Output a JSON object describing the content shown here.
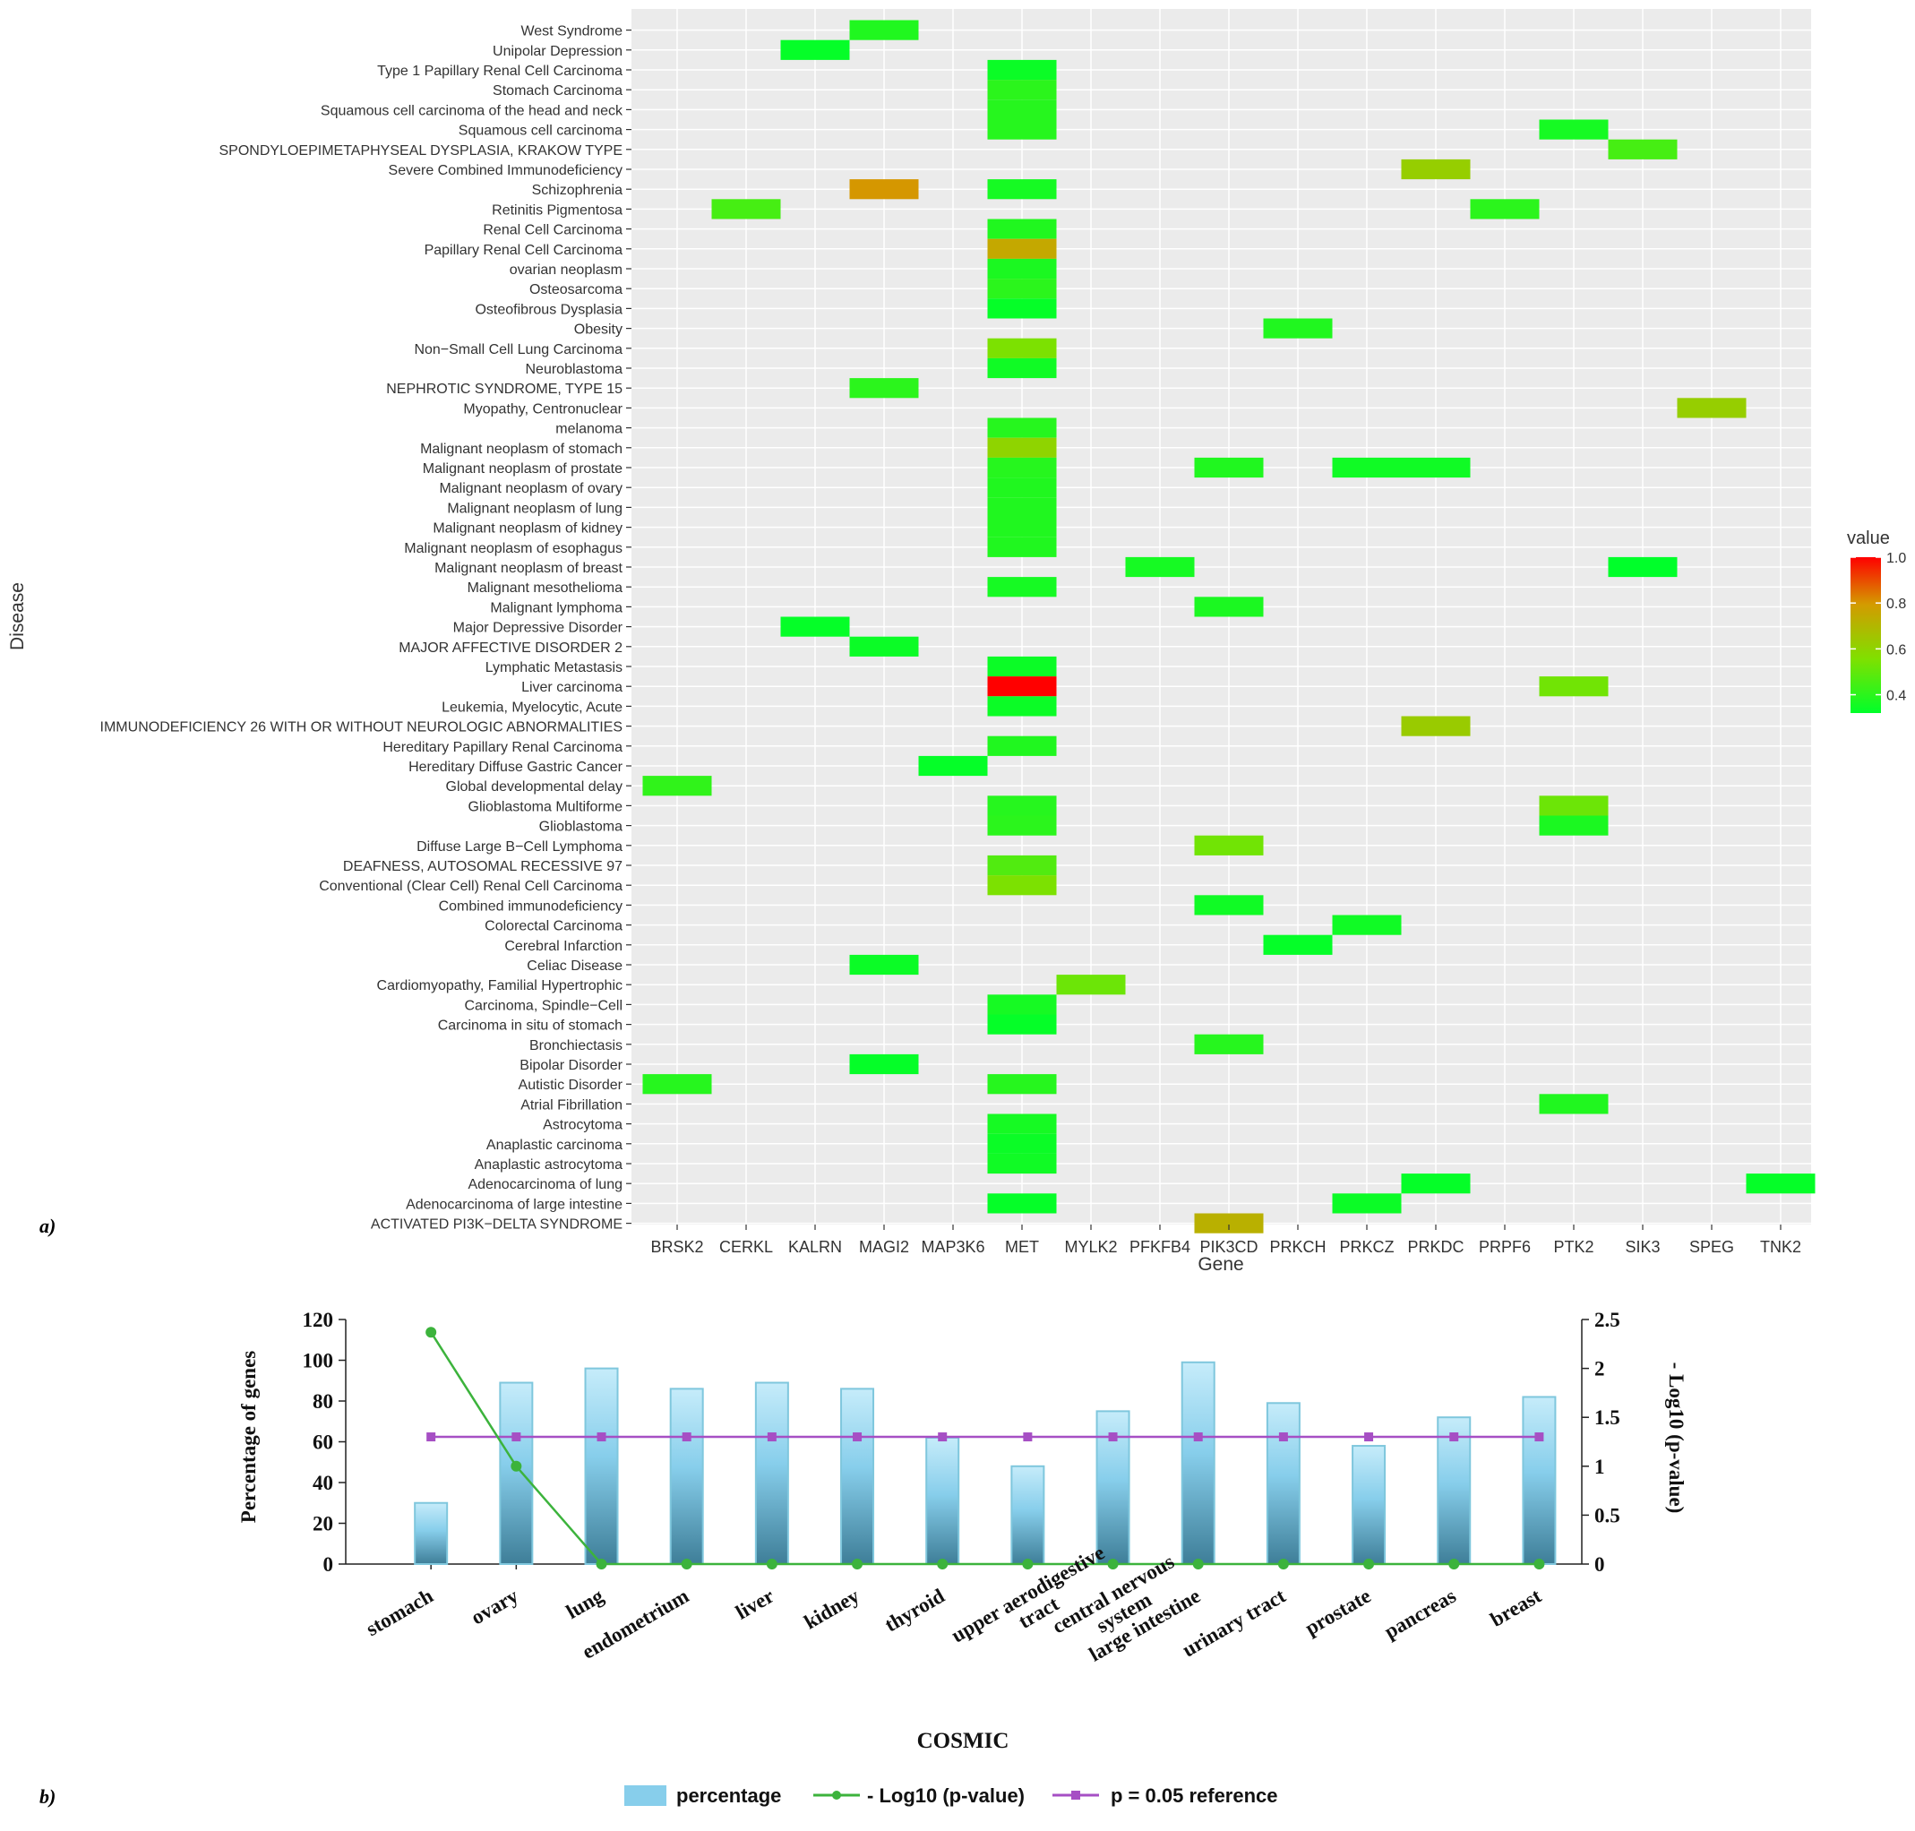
{
  "chart_data": [
    {
      "type": "heatmap",
      "panel_label": "a)",
      "xlabel": "Gene",
      "ylabel": "Disease",
      "x": [
        "BRSK2",
        "CERKL",
        "KALRN",
        "MAGI2",
        "MAP3K6",
        "MET",
        "MYLK2",
        "PFKFB4",
        "PIK3CD",
        "PRKCH",
        "PRKCZ",
        "PRKDC",
        "PRPF6",
        "PTK2",
        "SIK3",
        "SPEG",
        "TNK2"
      ],
      "y": [
        "West Syndrome",
        "Unipolar Depression",
        "Type 1 Papillary Renal Cell Carcinoma",
        "Stomach Carcinoma",
        "Squamous cell carcinoma of the head and neck",
        "Squamous cell carcinoma",
        "SPONDYLOEPIMETAPHYSEAL DYSPLASIA, KRAKOW TYPE",
        "Severe Combined Immunodeficiency",
        "Schizophrenia",
        "Retinitis Pigmentosa",
        "Renal Cell Carcinoma",
        "Papillary Renal Cell Carcinoma",
        "ovarian neoplasm",
        "Osteosarcoma",
        "Osteofibrous Dysplasia",
        "Obesity",
        "Non−Small Cell Lung Carcinoma",
        "Neuroblastoma",
        "NEPHROTIC SYNDROME, TYPE 15",
        "Myopathy, Centronuclear",
        "melanoma",
        "Malignant neoplasm of stomach",
        "Malignant neoplasm of prostate",
        "Malignant neoplasm of ovary",
        "Malignant neoplasm of lung",
        "Malignant neoplasm of kidney",
        "Malignant neoplasm of esophagus",
        "Malignant neoplasm of breast",
        "Malignant mesothelioma",
        "Malignant lymphoma",
        "Major Depressive Disorder",
        "MAJOR AFFECTIVE DISORDER 2",
        "Lymphatic Metastasis",
        "Liver carcinoma",
        "Leukemia, Myelocytic, Acute",
        "IMMUNODEFICIENCY 26 WITH OR WITHOUT NEUROLOGIC ABNORMALITIES",
        "Hereditary Papillary Renal Carcinoma",
        "Hereditary Diffuse Gastric Cancer",
        "Global developmental delay",
        "Glioblastoma Multiforme",
        "Glioblastoma",
        "Diffuse Large B−Cell Lymphoma",
        "DEAFNESS, AUTOSOMAL RECESSIVE 97",
        "Conventional (Clear Cell) Renal Cell Carcinoma",
        "Combined immunodeficiency",
        "Colorectal Carcinoma",
        "Cerebral Infarction",
        "Celiac Disease",
        "Cardiomyopathy, Familial Hypertrophic",
        "Carcinoma, Spindle−Cell",
        "Carcinoma in situ of stomach",
        "Bronchiectasis",
        "Bipolar Disorder",
        "Autistic Disorder",
        "Atrial Fibrillation",
        "Astrocytoma",
        "Anaplastic carcinoma",
        "Anaplastic astrocytoma",
        "Adenocarcinoma of lung",
        "Adenocarcinoma of large intestine",
        "ACTIVATED PI3K−DELTA SYNDROME"
      ],
      "cells": [
        {
          "gene": "MAGI2",
          "disease": "West Syndrome",
          "value": 0.38
        },
        {
          "gene": "KALRN",
          "disease": "Unipolar Depression",
          "value": 0.33
        },
        {
          "gene": "MET",
          "disease": "Type 1 Papillary Renal Cell Carcinoma",
          "value": 0.34
        },
        {
          "gene": "MET",
          "disease": "Stomach Carcinoma",
          "value": 0.4
        },
        {
          "gene": "MET",
          "disease": "Squamous cell carcinoma of the head and neck",
          "value": 0.39
        },
        {
          "gene": "MET",
          "disease": "Squamous cell carcinoma",
          "value": 0.39
        },
        {
          "gene": "PTK2",
          "disease": "Squamous cell carcinoma",
          "value": 0.36
        },
        {
          "gene": "SIK3",
          "disease": "SPONDYLOEPIMETAPHYSEAL DYSPLASIA, KRAKOW TYPE",
          "value": 0.45
        },
        {
          "gene": "PRKDC",
          "disease": "Severe Combined Immunodeficiency",
          "value": 0.62
        },
        {
          "gene": "MAGI2",
          "disease": "Schizophrenia",
          "value": 0.8
        },
        {
          "gene": "MET",
          "disease": "Schizophrenia",
          "value": 0.36
        },
        {
          "gene": "CERKL",
          "disease": "Retinitis Pigmentosa",
          "value": 0.45
        },
        {
          "gene": "PRPF6",
          "disease": "Retinitis Pigmentosa",
          "value": 0.4
        },
        {
          "gene": "MET",
          "disease": "Renal Cell Carcinoma",
          "value": 0.38
        },
        {
          "gene": "MET",
          "disease": "Papillary Renal Cell Carcinoma",
          "value": 0.75
        },
        {
          "gene": "MET",
          "disease": "ovarian neoplasm",
          "value": 0.37
        },
        {
          "gene": "MET",
          "disease": "Osteosarcoma",
          "value": 0.4
        },
        {
          "gene": "MET",
          "disease": "Osteofibrous Dysplasia",
          "value": 0.33
        },
        {
          "gene": "PRKCH",
          "disease": "Obesity",
          "value": 0.38
        },
        {
          "gene": "MET",
          "disease": "Non−Small Cell Lung Carcinoma",
          "value": 0.55
        },
        {
          "gene": "MET",
          "disease": "Neuroblastoma",
          "value": 0.35
        },
        {
          "gene": "MAGI2",
          "disease": "NEPHROTIC SYNDROME, TYPE 15",
          "value": 0.4
        },
        {
          "gene": "SPEG",
          "disease": "Myopathy, Centronuclear",
          "value": 0.62
        },
        {
          "gene": "MET",
          "disease": "melanoma",
          "value": 0.39
        },
        {
          "gene": "MET",
          "disease": "Malignant neoplasm of stomach",
          "value": 0.6
        },
        {
          "gene": "MET",
          "disease": "Malignant neoplasm of prostate",
          "value": 0.39
        },
        {
          "gene": "PIK3CD",
          "disease": "Malignant neoplasm of prostate",
          "value": 0.38
        },
        {
          "gene": "PRKCZ",
          "disease": "Malignant neoplasm of prostate",
          "value": 0.35
        },
        {
          "gene": "PRKDC",
          "disease": "Malignant neoplasm of prostate",
          "value": 0.35
        },
        {
          "gene": "MET",
          "disease": "Malignant neoplasm of ovary",
          "value": 0.38
        },
        {
          "gene": "MET",
          "disease": "Malignant neoplasm of lung",
          "value": 0.38
        },
        {
          "gene": "MET",
          "disease": "Malignant neoplasm of kidney",
          "value": 0.38
        },
        {
          "gene": "MET",
          "disease": "Malignant neoplasm of esophagus",
          "value": 0.38
        },
        {
          "gene": "PFKFB4",
          "disease": "Malignant neoplasm of breast",
          "value": 0.36
        },
        {
          "gene": "SIK3",
          "disease": "Malignant neoplasm of breast",
          "value": 0.32
        },
        {
          "gene": "MET",
          "disease": "Malignant mesothelioma",
          "value": 0.36
        },
        {
          "gene": "PIK3CD",
          "disease": "Malignant lymphoma",
          "value": 0.37
        },
        {
          "gene": "KALRN",
          "disease": "Major Depressive Disorder",
          "value": 0.33
        },
        {
          "gene": "MAGI2",
          "disease": "MAJOR AFFECTIVE DISORDER 2",
          "value": 0.34
        },
        {
          "gene": "MET",
          "disease": "Lymphatic Metastasis",
          "value": 0.34
        },
        {
          "gene": "MET",
          "disease": "Liver carcinoma",
          "value": 1.0
        },
        {
          "gene": "PTK2",
          "disease": "Liver carcinoma",
          "value": 0.53
        },
        {
          "gene": "MET",
          "disease": "Leukemia, Myelocytic, Acute",
          "value": 0.34
        },
        {
          "gene": "PRKDC",
          "disease": "IMMUNODEFICIENCY 26 WITH OR WITHOUT NEUROLOGIC ABNORMALITIES",
          "value": 0.63
        },
        {
          "gene": "MET",
          "disease": "Hereditary Papillary Renal Carcinoma",
          "value": 0.38
        },
        {
          "gene": "MAP3K6",
          "disease": "Hereditary Diffuse Gastric Cancer",
          "value": 0.33
        },
        {
          "gene": "BRSK2",
          "disease": "Global developmental delay",
          "value": 0.41
        },
        {
          "gene": "MET",
          "disease": "Glioblastoma Multiforme",
          "value": 0.39
        },
        {
          "gene": "PTK2",
          "disease": "Glioblastoma Multiforme",
          "value": 0.52
        },
        {
          "gene": "MET",
          "disease": "Glioblastoma",
          "value": 0.4
        },
        {
          "gene": "PTK2",
          "disease": "Glioblastoma",
          "value": 0.37
        },
        {
          "gene": "PIK3CD",
          "disease": "Diffuse Large B−Cell Lymphoma",
          "value": 0.53
        },
        {
          "gene": "MET",
          "disease": "DEAFNESS, AUTOSOMAL RECESSIVE 97",
          "value": 0.47
        },
        {
          "gene": "MET",
          "disease": "Conventional (Clear Cell) Renal Cell Carcinoma",
          "value": 0.55
        },
        {
          "gene": "PIK3CD",
          "disease": "Combined immunodeficiency",
          "value": 0.35
        },
        {
          "gene": "PRKCZ",
          "disease": "Colorectal Carcinoma",
          "value": 0.35
        },
        {
          "gene": "PRKCH",
          "disease": "Cerebral Infarction",
          "value": 0.33
        },
        {
          "gene": "MAGI2",
          "disease": "Celiac Disease",
          "value": 0.34
        },
        {
          "gene": "MYLK2",
          "disease": "Cardiomyopathy, Familial Hypertrophic",
          "value": 0.52
        },
        {
          "gene": "MET",
          "disease": "Carcinoma, Spindle−Cell",
          "value": 0.36
        },
        {
          "gene": "MET",
          "disease": "Carcinoma in situ of stomach",
          "value": 0.33
        },
        {
          "gene": "PIK3CD",
          "disease": "Bronchiectasis",
          "value": 0.39
        },
        {
          "gene": "MAGI2",
          "disease": "Bipolar Disorder",
          "value": 0.33
        },
        {
          "gene": "BRSK2",
          "disease": "Autistic Disorder",
          "value": 0.39
        },
        {
          "gene": "MET",
          "disease": "Autistic Disorder",
          "value": 0.39
        },
        {
          "gene": "PTK2",
          "disease": "Atrial Fibrillation",
          "value": 0.38
        },
        {
          "gene": "MET",
          "disease": "Astrocytoma",
          "value": 0.36
        },
        {
          "gene": "MET",
          "disease": "Anaplastic carcinoma",
          "value": 0.34
        },
        {
          "gene": "MET",
          "disease": "Anaplastic astrocytoma",
          "value": 0.35
        },
        {
          "gene": "PRKDC",
          "disease": "Adenocarcinoma of lung",
          "value": 0.33
        },
        {
          "gene": "TNK2",
          "disease": "Adenocarcinoma of lung",
          "value": 0.33
        },
        {
          "gene": "MET",
          "disease": "Adenocarcinoma of large intestine",
          "value": 0.33
        },
        {
          "gene": "PRKCZ",
          "disease": "Adenocarcinoma of large intestine",
          "value": 0.34
        },
        {
          "gene": "PIK3CD",
          "disease": "ACTIVATED PI3K−DELTA SYNDROME",
          "value": 0.72
        }
      ],
      "colorbar": {
        "title": "value",
        "ticks": [
          "1.0",
          "0.8",
          "0.6",
          "0.4"
        ],
        "range": [
          0.32,
          1.0
        ],
        "colors": [
          "#00ff2a",
          "#80e000",
          "#d49a00",
          "#ff0000"
        ]
      },
      "grid": true,
      "background": "#ebebeb"
    },
    {
      "type": "bar",
      "panel_label": "b)",
      "xlabel": "COSMIC",
      "ylabel": "Percentage of genes",
      "y2label": "- Log10 (p-value)",
      "ylim": [
        0,
        120
      ],
      "yticks": [
        "0",
        "20",
        "40",
        "60",
        "80",
        "100",
        "120"
      ],
      "y2lim": [
        0,
        2.5
      ],
      "y2ticks": [
        "0",
        "0.5",
        "1",
        "1.5",
        "2",
        "2.5"
      ],
      "categories": [
        "stomach",
        "ovary",
        "lung",
        "endometrium",
        "liver",
        "kidney",
        "thyroid",
        "upper aerodigestive tract",
        "central nervous system",
        "large intestine",
        "urinary tract",
        "prostate",
        "pancreas",
        "breast"
      ],
      "category_lines": [
        [
          "stomach"
        ],
        [
          "ovary"
        ],
        [
          "lung"
        ],
        [
          "endometrium"
        ],
        [
          "liver"
        ],
        [
          "kidney"
        ],
        [
          "thyroid"
        ],
        [
          "upper aerodigestive",
          "tract"
        ],
        [
          "central nervous",
          "system"
        ],
        [
          "large intestine"
        ],
        [
          "urinary tract"
        ],
        [
          "prostate"
        ],
        [
          "pancreas"
        ],
        [
          "breast"
        ]
      ],
      "series": [
        {
          "name": "percentage",
          "kind": "bar",
          "axis": "left",
          "color": "#87ceeb",
          "values": [
            30,
            89,
            96,
            86,
            89,
            86,
            62,
            48,
            75,
            99,
            79,
            58,
            72,
            82
          ]
        },
        {
          "name": "- Log10 (p-value)",
          "kind": "line",
          "axis": "right",
          "color": "#3cb33c",
          "marker": "circle",
          "values": [
            2.37,
            1.0,
            0,
            0,
            0,
            0,
            0,
            0,
            0,
            0,
            0,
            0,
            0,
            0
          ]
        },
        {
          "name": "p = 0.05 reference",
          "kind": "line",
          "axis": "right",
          "color": "#a64fc4",
          "marker": "square",
          "values": [
            1.3,
            1.3,
            1.3,
            1.3,
            1.3,
            1.3,
            1.3,
            1.3,
            1.3,
            1.3,
            1.3,
            1.3,
            1.3,
            1.3
          ]
        }
      ],
      "legend_position": "bottom"
    }
  ]
}
